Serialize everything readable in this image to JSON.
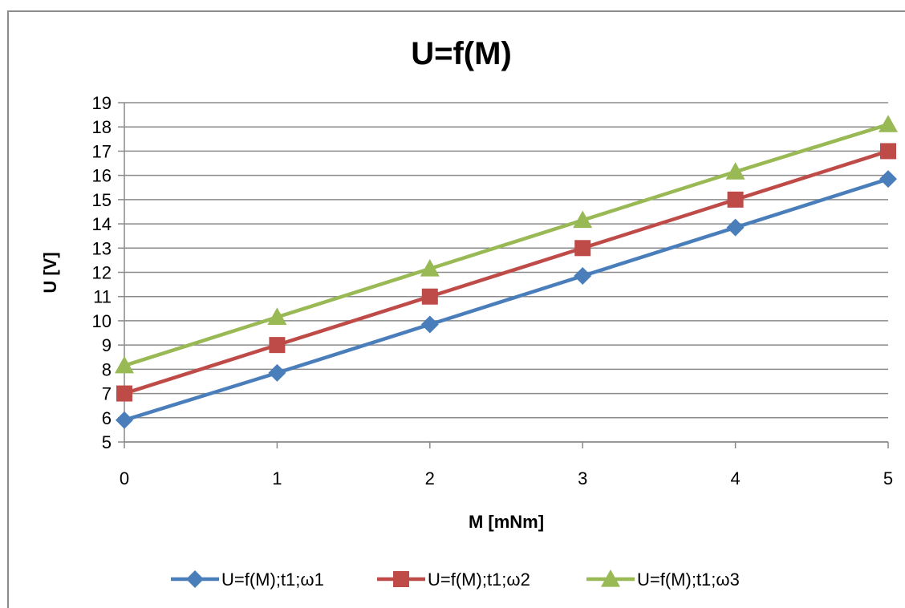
{
  "chart_data": {
    "type": "line",
    "title": "U=f(M)",
    "xlabel": "M [mNm]",
    "ylabel": "U [V]",
    "x": [
      0,
      1,
      2,
      3,
      4,
      5
    ],
    "xlim": [
      0,
      5
    ],
    "ylim": [
      5,
      19
    ],
    "xticks": [
      0,
      1,
      2,
      3,
      4,
      5
    ],
    "yticks": [
      5,
      6,
      7,
      8,
      9,
      10,
      11,
      12,
      13,
      14,
      15,
      16,
      17,
      18,
      19
    ],
    "grid": "horizontal",
    "legend_position": "bottom",
    "series": [
      {
        "name": "U=f(M);t1;ω1",
        "values": [
          5.9,
          7.85,
          9.85,
          11.85,
          13.85,
          15.85
        ],
        "color": "#4a7ebb",
        "marker": "diamond"
      },
      {
        "name": "U=f(M);t1;ω2",
        "values": [
          7.0,
          9.0,
          11.0,
          13.0,
          15.0,
          17.0
        ],
        "color": "#be4b48",
        "marker": "square"
      },
      {
        "name": "U=f(M);t1;ω3",
        "values": [
          8.15,
          10.15,
          12.15,
          14.15,
          16.15,
          18.1
        ],
        "color": "#98b954",
        "marker": "triangle"
      }
    ]
  }
}
